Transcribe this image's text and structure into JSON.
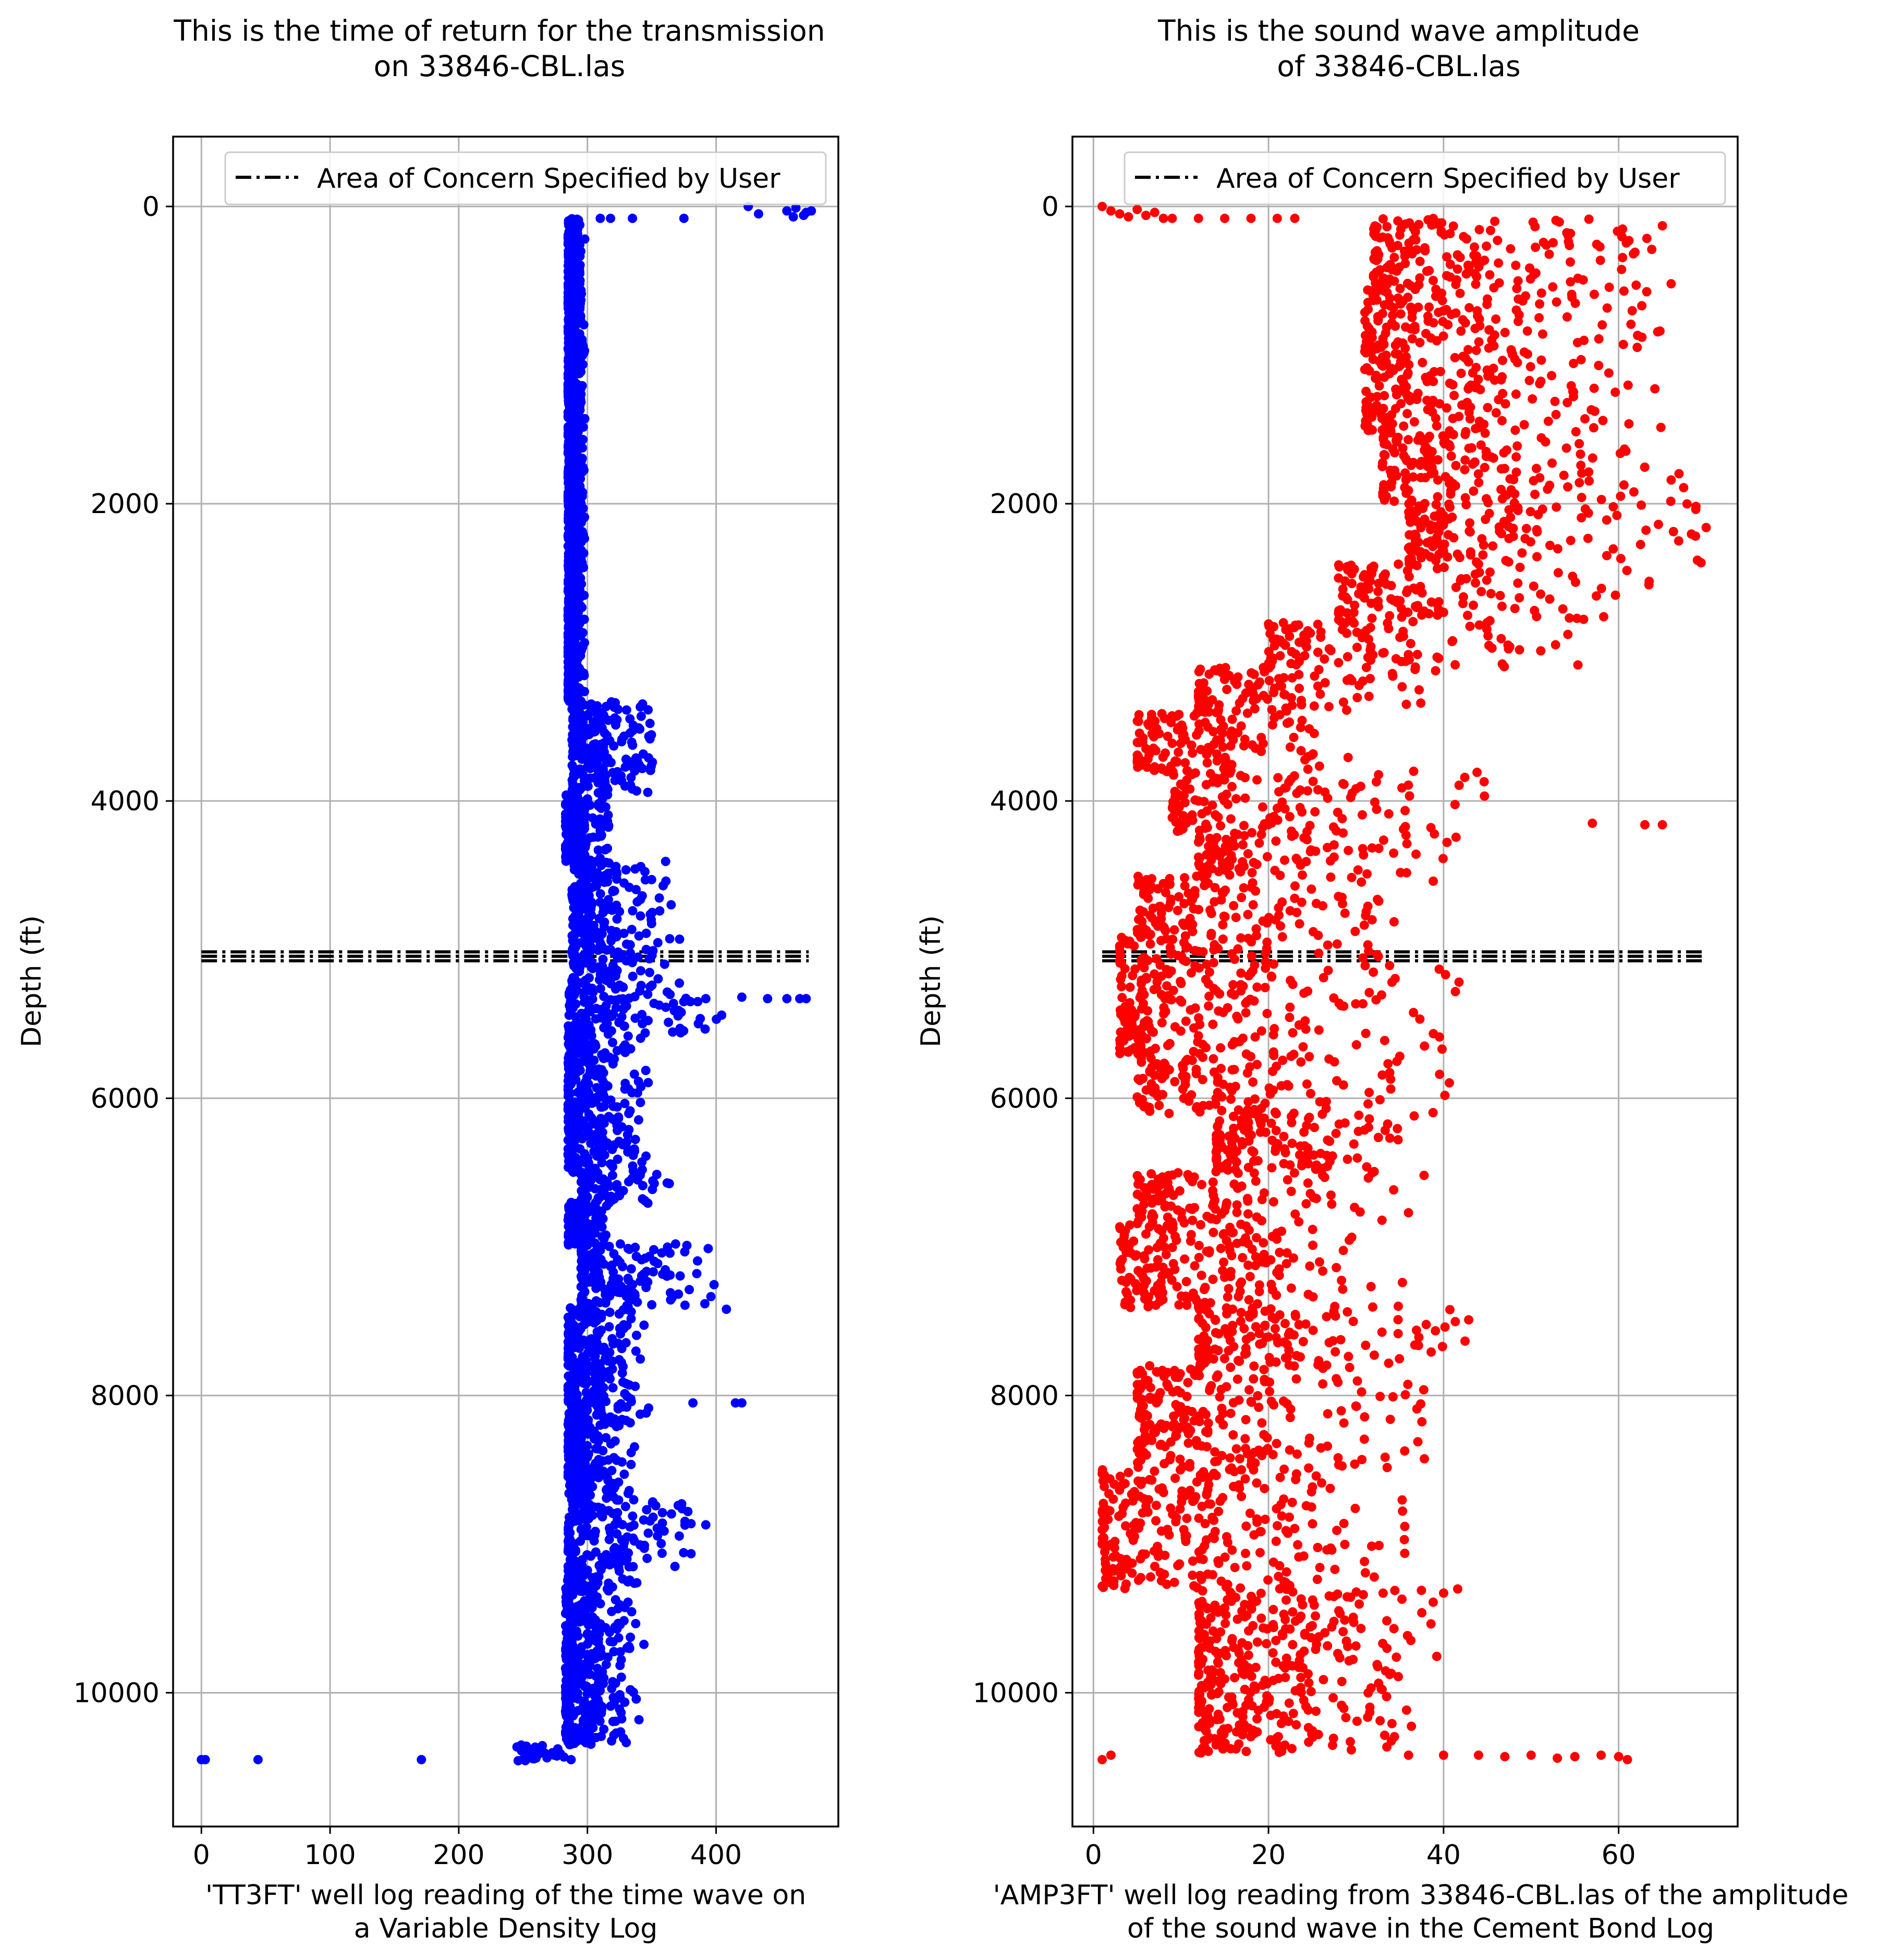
{
  "chart_data": [
    {
      "type": "scatter",
      "title": "This is the time of return for the transmission\non 33846-CBL.las",
      "xlabel": "'TT3FT' well log reading of the time wave on\na Variable Density Log",
      "ylabel": "Depth (ft)",
      "xlim": [
        -22,
        495
      ],
      "ylim": [
        10900,
        -470
      ],
      "y_inverted": true,
      "grid": true,
      "legend": "upper-right",
      "xticks": [
        0,
        100,
        200,
        300,
        400
      ],
      "yticks": [
        0,
        2000,
        4000,
        6000,
        8000,
        10000
      ],
      "xtick_labels": [
        "0",
        "100",
        "200",
        "300",
        "400"
      ],
      "ytick_labels": [
        "0",
        "2000",
        "4000",
        "6000",
        "8000",
        "10000"
      ],
      "series": [
        {
          "name": "",
          "kind": "scatter",
          "color": "#0000ff",
          "segments": [
            {
              "y0": 80,
              "y1": 3330,
              "xmin": 285,
              "xmax": 298
            },
            {
              "y0": 3330,
              "y1": 3950,
              "xmin": 288,
              "xmax": 352
            },
            {
              "y0": 3950,
              "y1": 4400,
              "xmin": 283,
              "xmax": 318
            },
            {
              "y0": 4400,
              "y1": 4820,
              "xmin": 288,
              "xmax": 368
            },
            {
              "y0": 4820,
              "y1": 5250,
              "xmin": 288,
              "xmax": 372
            },
            {
              "y0": 5250,
              "y1": 5560,
              "xmin": 285,
              "xmax": 405
            },
            {
              "y0": 5560,
              "y1": 6500,
              "xmin": 285,
              "xmax": 348
            },
            {
              "y0": 6500,
              "y1": 6700,
              "xmin": 295,
              "xmax": 372
            },
            {
              "y0": 6700,
              "y1": 6980,
              "xmin": 285,
              "xmax": 318
            },
            {
              "y0": 6980,
              "y1": 7400,
              "xmin": 295,
              "xmax": 402
            },
            {
              "y0": 7400,
              "y1": 8200,
              "xmin": 285,
              "xmax": 348
            },
            {
              "y0": 8200,
              "y1": 8700,
              "xmin": 285,
              "xmax": 338
            },
            {
              "y0": 8700,
              "y1": 9200,
              "xmin": 285,
              "xmax": 382
            },
            {
              "y0": 9200,
              "y1": 10350,
              "xmin": 283,
              "xmax": 345
            },
            {
              "y0": 10350,
              "y1": 10450,
              "xmin": 245,
              "xmax": 292
            }
          ],
          "points": [
            {
              "x": 0,
              "y": 10450
            },
            {
              "x": 3,
              "y": 10450
            },
            {
              "x": 44,
              "y": 10450
            },
            {
              "x": 171,
              "y": 10450
            },
            {
              "x": 425,
              "y": 0
            },
            {
              "x": 433,
              "y": 50
            },
            {
              "x": 455,
              "y": 30
            },
            {
              "x": 462,
              "y": 10
            },
            {
              "x": 468,
              "y": 60
            },
            {
              "x": 470,
              "y": 40
            },
            {
              "x": 460,
              "y": 70
            },
            {
              "x": 474,
              "y": 30
            },
            {
              "x": 310,
              "y": 80
            },
            {
              "x": 318,
              "y": 80
            },
            {
              "x": 335,
              "y": 80
            },
            {
              "x": 375,
              "y": 80
            },
            {
              "x": 440,
              "y": 5330
            },
            {
              "x": 455,
              "y": 5330
            },
            {
              "x": 465,
              "y": 5330
            },
            {
              "x": 470,
              "y": 5330
            },
            {
              "x": 420,
              "y": 5320
            },
            {
              "x": 392,
              "y": 5330
            },
            {
              "x": 380,
              "y": 5350
            },
            {
              "x": 372,
              "y": 5530
            },
            {
              "x": 382,
              "y": 8050
            },
            {
              "x": 415,
              "y": 8050
            },
            {
              "x": 420,
              "y": 8050
            },
            {
              "x": 408,
              "y": 7420
            },
            {
              "x": 392,
              "y": 8870
            },
            {
              "x": 368,
              "y": 9150
            },
            {
              "x": 385,
              "y": 7180
            },
            {
              "x": 362,
              "y": 6570
            }
          ]
        },
        {
          "name": "Area of Concern Specified by User",
          "kind": "hline",
          "color": "#000000",
          "linestyle": "dashdot",
          "y": [
            5015,
            5045,
            5075
          ],
          "xmin": 0,
          "xmax": 472
        }
      ]
    },
    {
      "type": "scatter",
      "title": "This is the sound wave amplitude\nof 33846-CBL.las",
      "xlabel": "'AMP3FT' well log reading from 33846-CBL.las of the amplitude\nof the sound wave in the Cement Bond Log",
      "ylabel": "Depth (ft)",
      "xlim": [
        -2.4,
        73.6
      ],
      "ylim": [
        10900,
        -470
      ],
      "y_inverted": true,
      "grid": true,
      "legend": "upper-right",
      "xticks": [
        0,
        20,
        40,
        60
      ],
      "yticks": [
        0,
        2000,
        4000,
        6000,
        8000,
        10000
      ],
      "xtick_labels": [
        "0",
        "20",
        "40",
        "60"
      ],
      "ytick_labels": [
        "0",
        "2000",
        "4000",
        "6000",
        "8000",
        "10000"
      ],
      "series": [
        {
          "name": "",
          "kind": "scatter",
          "color": "#ff0000",
          "segments": [
            {
              "y0": 80,
              "y1": 500,
              "xmin": 32,
              "xmax": 65
            },
            {
              "y0": 500,
              "y1": 1500,
              "xmin": 31,
              "xmax": 65
            },
            {
              "y0": 1500,
              "y1": 2000,
              "xmin": 33,
              "xmax": 68
            },
            {
              "y0": 2000,
              "y1": 2400,
              "xmin": 36,
              "xmax": 70
            },
            {
              "y0": 2400,
              "y1": 2800,
              "xmin": 28,
              "xmax": 64
            },
            {
              "y0": 2800,
              "y1": 3100,
              "xmin": 20,
              "xmax": 56
            },
            {
              "y0": 3100,
              "y1": 3400,
              "xmin": 12,
              "xmax": 44
            },
            {
              "y0": 3400,
              "y1": 3800,
              "xmin": 5,
              "xmax": 30
            },
            {
              "y0": 3800,
              "y1": 4200,
              "xmin": 9,
              "xmax": 46
            },
            {
              "y0": 4200,
              "y1": 4500,
              "xmin": 12,
              "xmax": 42
            },
            {
              "y0": 4500,
              "y1": 4900,
              "xmin": 5,
              "xmax": 40
            },
            {
              "y0": 4900,
              "y1": 5300,
              "xmin": 3,
              "xmax": 42
            },
            {
              "y0": 5300,
              "y1": 5700,
              "xmin": 3,
              "xmax": 41
            },
            {
              "y0": 5700,
              "y1": 6100,
              "xmin": 5,
              "xmax": 42
            },
            {
              "y0": 6100,
              "y1": 6500,
              "xmin": 14,
              "xmax": 41
            },
            {
              "y0": 6500,
              "y1": 6850,
              "xmin": 5,
              "xmax": 38
            },
            {
              "y0": 6850,
              "y1": 7400,
              "xmin": 3,
              "xmax": 36
            },
            {
              "y0": 7400,
              "y1": 7800,
              "xmin": 12,
              "xmax": 43
            },
            {
              "y0": 7800,
              "y1": 8500,
              "xmin": 5,
              "xmax": 38
            },
            {
              "y0": 8500,
              "y1": 9300,
              "xmin": 1,
              "xmax": 36
            },
            {
              "y0": 9300,
              "y1": 10000,
              "xmin": 12,
              "xmax": 42
            },
            {
              "y0": 10000,
              "y1": 10400,
              "xmin": 12,
              "xmax": 40
            }
          ],
          "points": [
            {
              "x": 1,
              "y": 0
            },
            {
              "x": 2,
              "y": 30
            },
            {
              "x": 3,
              "y": 50
            },
            {
              "x": 4,
              "y": 70
            },
            {
              "x": 5,
              "y": 20
            },
            {
              "x": 6,
              "y": 60
            },
            {
              "x": 7,
              "y": 40
            },
            {
              "x": 8,
              "y": 80
            },
            {
              "x": 9,
              "y": 80
            },
            {
              "x": 12,
              "y": 80
            },
            {
              "x": 15,
              "y": 80
            },
            {
              "x": 18,
              "y": 80
            },
            {
              "x": 21,
              "y": 80
            },
            {
              "x": 23,
              "y": 80
            },
            {
              "x": 44,
              "y": 10420
            },
            {
              "x": 47,
              "y": 10430
            },
            {
              "x": 50,
              "y": 10420
            },
            {
              "x": 53,
              "y": 10440
            },
            {
              "x": 55,
              "y": 10430
            },
            {
              "x": 58,
              "y": 10420
            },
            {
              "x": 60,
              "y": 10430
            },
            {
              "x": 61,
              "y": 10450
            },
            {
              "x": 1,
              "y": 10450
            },
            {
              "x": 2,
              "y": 10420
            },
            {
              "x": 36,
              "y": 10420
            },
            {
              "x": 40,
              "y": 10420
            },
            {
              "x": 57,
              "y": 4150
            },
            {
              "x": 63,
              "y": 4160
            },
            {
              "x": 65,
              "y": 4160
            },
            {
              "x": 69,
              "y": 2380
            },
            {
              "x": 70,
              "y": 2160
            },
            {
              "x": 66,
              "y": 1840
            },
            {
              "x": 65,
              "y": 130
            },
            {
              "x": 66,
              "y": 520
            }
          ]
        },
        {
          "name": "Area of Concern Specified by User",
          "kind": "hline",
          "color": "#000000",
          "linestyle": "dashdot",
          "y": [
            5015,
            5045,
            5075
          ],
          "xmin": 1,
          "xmax": 70
        }
      ]
    }
  ]
}
